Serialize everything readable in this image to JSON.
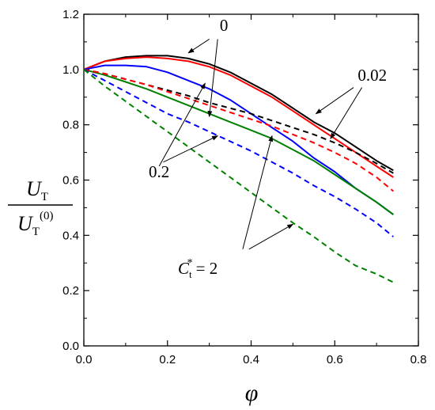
{
  "chart_data": {
    "type": "line",
    "xlabel": "φ",
    "ylabel": {
      "numerator_main": "U",
      "numerator_sub": "T",
      "denominator_main": "U",
      "denominator_sub": "T",
      "denominator_sup": "(0)"
    },
    "xlim": [
      0,
      0.8
    ],
    "ylim": [
      0,
      1.2
    ],
    "xticks": [
      "0.0",
      "0.2",
      "0.4",
      "0.6",
      "0.8"
    ],
    "yticks": [
      "0.0",
      "0.2",
      "0.4",
      "0.6",
      "0.8",
      "1.0",
      "1.2"
    ],
    "grid": false,
    "series": [
      {
        "color": "#000000",
        "style": "solid",
        "x": [
          0,
          0.05,
          0.1,
          0.15,
          0.2,
          0.25,
          0.3,
          0.35,
          0.4,
          0.45,
          0.5,
          0.55,
          0.6,
          0.65,
          0.7,
          0.74
        ],
        "y": [
          1.0,
          1.03,
          1.045,
          1.05,
          1.05,
          1.04,
          1.02,
          0.99,
          0.95,
          0.91,
          0.86,
          0.81,
          0.77,
          0.72,
          0.67,
          0.635
        ]
      },
      {
        "color": "#ff0000",
        "style": "solid",
        "x": [
          0,
          0.05,
          0.1,
          0.15,
          0.2,
          0.25,
          0.3,
          0.35,
          0.4,
          0.45,
          0.5,
          0.55,
          0.6,
          0.65,
          0.7,
          0.74
        ],
        "y": [
          1.0,
          1.03,
          1.04,
          1.045,
          1.04,
          1.03,
          1.01,
          0.98,
          0.94,
          0.9,
          0.85,
          0.8,
          0.75,
          0.7,
          0.65,
          0.61
        ]
      },
      {
        "color": "#0000ff",
        "style": "solid",
        "x": [
          0,
          0.05,
          0.1,
          0.15,
          0.2,
          0.25,
          0.3,
          0.35,
          0.4,
          0.45,
          0.5,
          0.55,
          0.6,
          0.65,
          0.7,
          0.74
        ],
        "y": [
          1.0,
          1.015,
          1.015,
          1.01,
          0.99,
          0.96,
          0.93,
          0.89,
          0.84,
          0.79,
          0.74,
          0.68,
          0.63,
          0.57,
          0.52,
          0.475
        ]
      },
      {
        "color": "#008000",
        "style": "solid",
        "x": [
          0,
          0.05,
          0.1,
          0.15,
          0.2,
          0.25,
          0.3,
          0.35,
          0.4,
          0.45,
          0.5,
          0.55,
          0.6,
          0.65,
          0.7,
          0.74
        ],
        "y": [
          1.0,
          0.98,
          0.955,
          0.93,
          0.9,
          0.87,
          0.84,
          0.81,
          0.78,
          0.75,
          0.71,
          0.67,
          0.62,
          0.57,
          0.52,
          0.475
        ]
      },
      {
        "color": "#000000",
        "style": "dashed",
        "x": [
          0,
          0.05,
          0.1,
          0.15,
          0.2,
          0.25,
          0.3,
          0.35,
          0.4,
          0.45,
          0.5,
          0.55,
          0.6,
          0.65,
          0.7,
          0.74
        ],
        "y": [
          1.0,
          0.985,
          0.965,
          0.945,
          0.925,
          0.905,
          0.88,
          0.86,
          0.84,
          0.815,
          0.79,
          0.765,
          0.735,
          0.7,
          0.66,
          0.625
        ]
      },
      {
        "color": "#ff0000",
        "style": "dashed",
        "x": [
          0,
          0.05,
          0.1,
          0.15,
          0.2,
          0.25,
          0.3,
          0.35,
          0.4,
          0.45,
          0.5,
          0.55,
          0.6,
          0.65,
          0.7,
          0.74
        ],
        "y": [
          1.0,
          0.985,
          0.965,
          0.945,
          0.92,
          0.895,
          0.87,
          0.845,
          0.82,
          0.795,
          0.765,
          0.735,
          0.7,
          0.66,
          0.61,
          0.56
        ]
      },
      {
        "color": "#0000ff",
        "style": "dashed",
        "x": [
          0,
          0.05,
          0.1,
          0.15,
          0.2,
          0.25,
          0.3,
          0.35,
          0.4,
          0.45,
          0.5,
          0.55,
          0.6,
          0.65,
          0.7,
          0.74
        ],
        "y": [
          1.0,
          0.96,
          0.92,
          0.88,
          0.84,
          0.81,
          0.775,
          0.74,
          0.705,
          0.665,
          0.625,
          0.58,
          0.54,
          0.495,
          0.445,
          0.395
        ]
      },
      {
        "color": "#008000",
        "style": "dashed",
        "x": [
          0,
          0.05,
          0.1,
          0.15,
          0.2,
          0.25,
          0.3,
          0.35,
          0.4,
          0.45,
          0.5,
          0.55,
          0.6,
          0.65,
          0.7,
          0.74
        ],
        "y": [
          1.0,
          0.94,
          0.885,
          0.83,
          0.775,
          0.72,
          0.665,
          0.61,
          0.555,
          0.5,
          0.445,
          0.395,
          0.34,
          0.29,
          0.26,
          0.23
        ]
      }
    ],
    "annotations": [
      {
        "text": "0",
        "tx": 0.325,
        "ty": 1.14,
        "arrows": [
          [
            0.3,
            1.11,
            0.25,
            1.06
          ],
          [
            0.32,
            1.11,
            0.3,
            0.83
          ]
        ]
      },
      {
        "text": "0.02",
        "tx": 0.655,
        "ty": 0.96,
        "arrows": [
          [
            0.645,
            0.935,
            0.555,
            0.84
          ],
          [
            0.665,
            0.935,
            0.59,
            0.75
          ]
        ]
      },
      {
        "text": "0.2",
        "tx": 0.155,
        "ty": 0.61,
        "arrows": [
          [
            0.19,
            0.665,
            0.32,
            0.76
          ],
          [
            0.18,
            0.65,
            0.29,
            0.95
          ]
        ]
      },
      {
        "text": "= 2",
        "prefix_main": "C",
        "prefix_sub": "t",
        "prefix_sup": "*",
        "tx": 0.225,
        "ty": 0.26,
        "arrows": [
          [
            0.38,
            0.35,
            0.45,
            0.76
          ],
          [
            0.395,
            0.35,
            0.5,
            0.44
          ]
        ]
      }
    ]
  }
}
